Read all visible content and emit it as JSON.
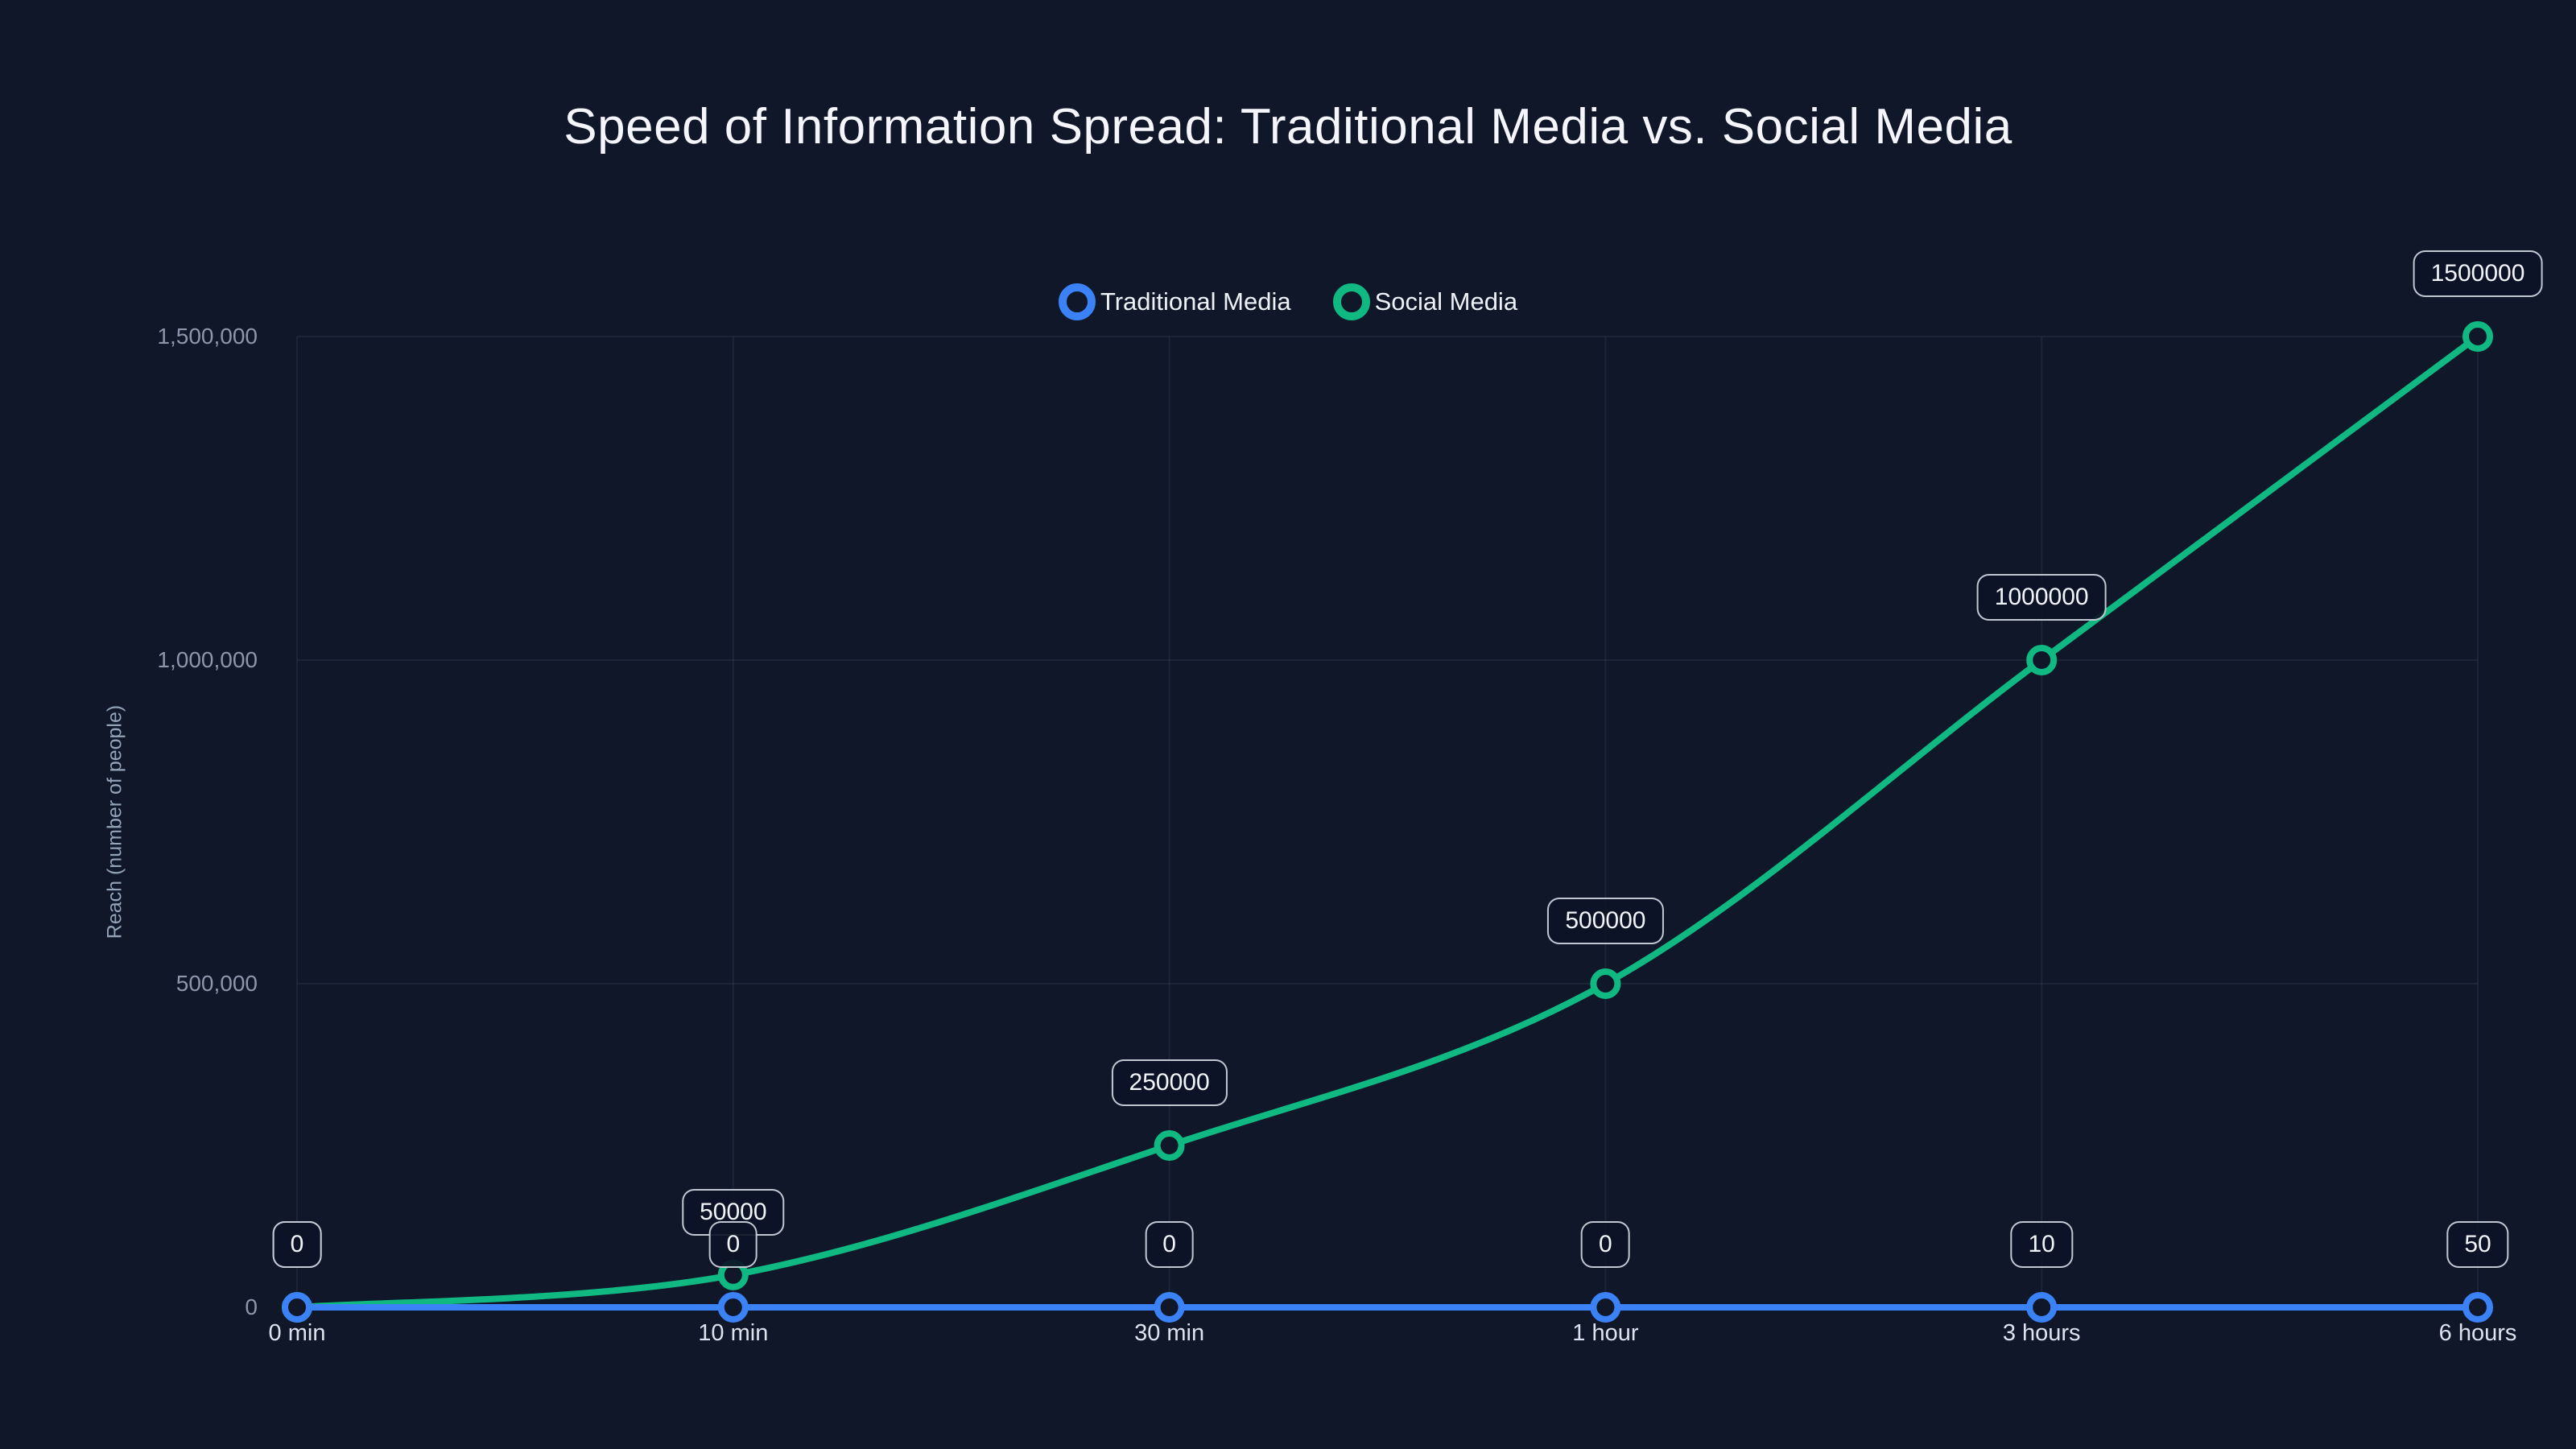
{
  "chart_data": {
    "type": "line",
    "title": "Speed of Information Spread: Traditional Media vs. Social Media",
    "ylabel": "Reach (number of people)",
    "xlabel": "",
    "categories": [
      "0 min",
      "10 min",
      "30 min",
      "1 hour",
      "3 hours",
      "6 hours"
    ],
    "series": [
      {
        "name": "Traditional Media",
        "color": "#3b82f6",
        "values": [
          0,
          0,
          0,
          0,
          10,
          50
        ],
        "point_labels": [
          "0",
          "0",
          "0",
          "0",
          "10",
          "50"
        ]
      },
      {
        "name": "Social Media",
        "color": "#10b981",
        "values": [
          0,
          50000,
          250000,
          500000,
          1000000,
          1500000
        ],
        "point_labels": [
          "0",
          "50000",
          "250000",
          "500000",
          "1000000",
          "1500000"
        ]
      }
    ],
    "ylim": [
      0,
      1500000
    ],
    "yticks": [
      0,
      500000,
      1000000,
      1500000
    ],
    "ytick_labels": [
      "0",
      "500,000",
      "1,000,000",
      "1,500,000"
    ],
    "grid": true,
    "legend_position": "top",
    "curve": "smooth",
    "point_style": "hollow-circle",
    "background": "#0f1729",
    "grid_color": "rgba(148,163,184,0.10)"
  }
}
